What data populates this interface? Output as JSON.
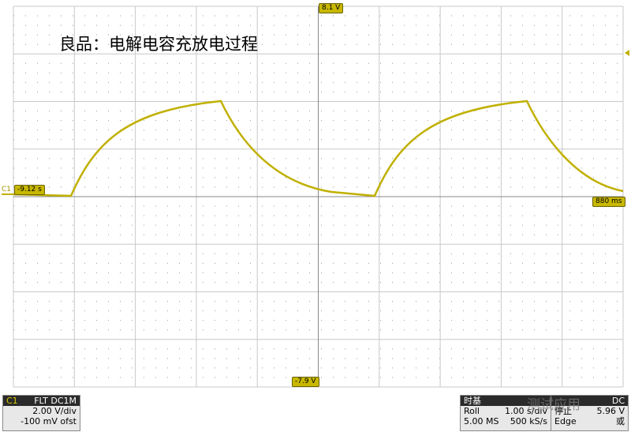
{
  "screen": {
    "title": "良品：电解电容充放电过程",
    "markers": {
      "top": "8.1 V",
      "left": "-9.12 s",
      "right": "880 ms",
      "bottom": "-7.9 V",
      "channel": "C1"
    },
    "channel_panel": {
      "name": "C1",
      "filter": "FLT",
      "coupling": "DC1M",
      "scale": "2.00 V/div",
      "offset": "-100 mV ofst"
    },
    "timebase_panel": {
      "title": "时基",
      "mode": "Roll",
      "scale": "1.00 s/div",
      "memory": "5.00 MS",
      "rate": "500 kS/s"
    },
    "trigger_panel": {
      "coupling": "DC",
      "state": "停止",
      "level": "5.96 V",
      "type": "Edge",
      "source": "或"
    },
    "watermark": "测试应用"
  }
}
